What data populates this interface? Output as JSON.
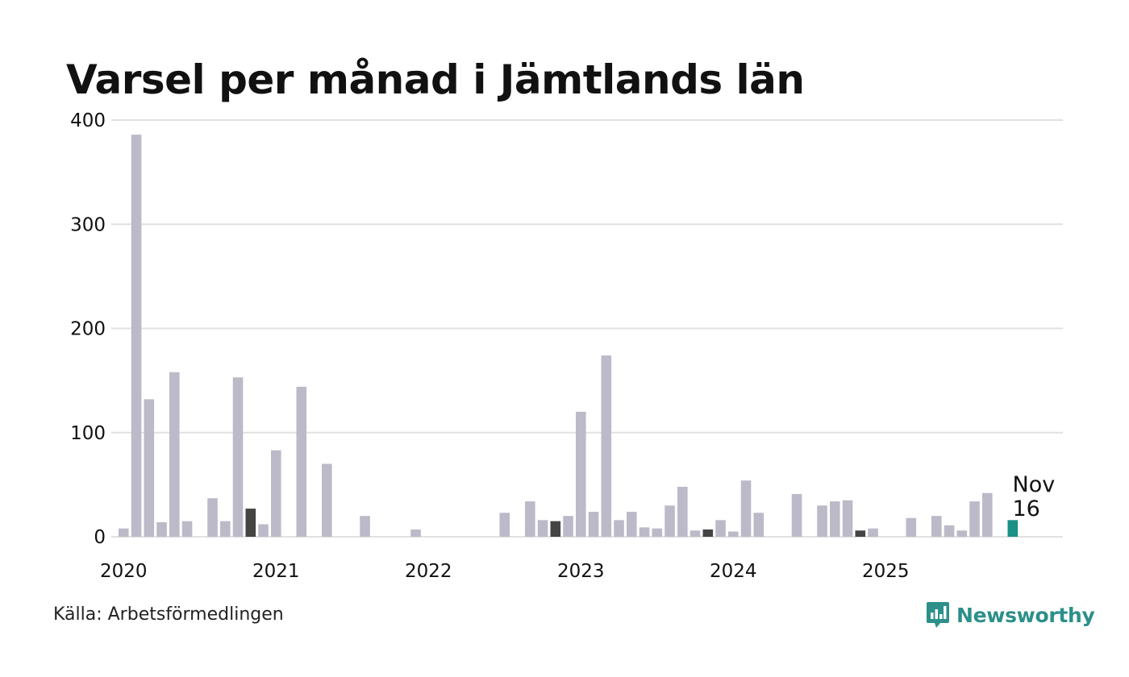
{
  "chart_data": {
    "type": "bar",
    "title": "Varsel per månad i Jämtlands län",
    "xlabel": "",
    "ylabel": "",
    "ylim": [
      0,
      400
    ],
    "yticks": [
      "0",
      "100",
      "200",
      "300",
      "400"
    ],
    "year_labels": [
      "2020",
      "2021",
      "2022",
      "2023",
      "2024",
      "2025"
    ],
    "months": [
      "2020-01",
      "2020-02",
      "2020-03",
      "2020-04",
      "2020-05",
      "2020-06",
      "2020-07",
      "2020-08",
      "2020-09",
      "2020-10",
      "2020-11",
      "2020-12",
      "2021-01",
      "2021-02",
      "2021-03",
      "2021-04",
      "2021-05",
      "2021-06",
      "2021-07",
      "2021-08",
      "2021-09",
      "2021-10",
      "2021-11",
      "2021-12",
      "2022-01",
      "2022-02",
      "2022-03",
      "2022-04",
      "2022-05",
      "2022-06",
      "2022-07",
      "2022-08",
      "2022-09",
      "2022-10",
      "2022-11",
      "2022-12",
      "2023-01",
      "2023-02",
      "2023-03",
      "2023-04",
      "2023-05",
      "2023-06",
      "2023-07",
      "2023-08",
      "2023-09",
      "2023-10",
      "2023-11",
      "2023-12",
      "2024-01",
      "2024-02",
      "2024-03",
      "2024-04",
      "2024-05",
      "2024-06",
      "2024-07",
      "2024-08",
      "2024-09",
      "2024-10",
      "2024-11",
      "2024-12",
      "2025-01",
      "2025-02",
      "2025-03",
      "2025-04",
      "2025-05",
      "2025-06",
      "2025-07",
      "2025-08",
      "2025-09",
      "2025-10",
      "2025-11"
    ],
    "values": [
      8,
      386,
      132,
      14,
      158,
      15,
      0,
      37,
      15,
      153,
      27,
      12,
      83,
      0,
      144,
      0,
      70,
      0,
      0,
      20,
      0,
      0,
      0,
      7,
      0,
      0,
      0,
      0,
      0,
      0,
      23,
      0,
      34,
      16,
      15,
      20,
      120,
      24,
      174,
      16,
      24,
      9,
      8,
      30,
      48,
      6,
      7,
      16,
      5,
      54,
      23,
      0,
      0,
      41,
      0,
      30,
      34,
      35,
      6,
      8,
      0,
      0,
      18,
      0,
      20,
      11,
      6,
      34,
      42,
      0,
      16
    ],
    "highlight_months": [
      "2020-11",
      "2022-11",
      "2023-11",
      "2024-11"
    ],
    "current_month": "2025-11",
    "colors": {
      "bar": "#bcbac8",
      "highlight": "#444444",
      "current": "#1a9086",
      "grid": "#e1e1e1"
    },
    "annotation": {
      "label": "Nov",
      "value": "16"
    }
  },
  "source": "Källa: Arbetsförmedlingen",
  "brand": {
    "name": "Newsworthy",
    "color": "#2c8f8a"
  }
}
